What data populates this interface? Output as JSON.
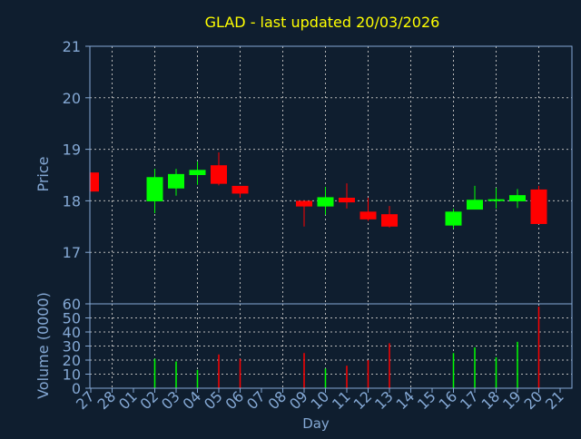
{
  "chart_data": [
    {
      "type": "candlestick",
      "title": "GLAD - last updated 20/03/2026",
      "ylabel": "Price",
      "ylim": [
        16,
        21
      ],
      "yticks": [
        "17",
        "18",
        "19",
        "20",
        "21"
      ],
      "grid": true,
      "x_categories": [
        "27",
        "28",
        "01",
        "02",
        "03",
        "04",
        "05",
        "06",
        "07",
        "08",
        "09",
        "10",
        "11",
        "12",
        "13",
        "14",
        "15",
        "16",
        "17",
        "18",
        "19",
        "20",
        "21"
      ],
      "candles": [
        {
          "x": "27",
          "open": 18.55,
          "high": 18.55,
          "low": 18.18,
          "close": 18.18
        },
        {
          "x": "02",
          "open": 17.99,
          "high": 18.62,
          "low": 17.76,
          "close": 18.46
        },
        {
          "x": "03",
          "open": 18.24,
          "high": 18.62,
          "low": 18.1,
          "close": 18.52
        },
        {
          "x": "04",
          "open": 18.5,
          "high": 18.76,
          "low": 18.31,
          "close": 18.6
        },
        {
          "x": "05",
          "open": 18.69,
          "high": 18.94,
          "low": 18.3,
          "close": 18.33
        },
        {
          "x": "06",
          "open": 18.29,
          "high": 18.29,
          "low": 18.06,
          "close": 18.14
        },
        {
          "x": "09",
          "open": 18.0,
          "high": 18.0,
          "low": 17.5,
          "close": 17.89
        },
        {
          "x": "10",
          "open": 17.89,
          "high": 18.27,
          "low": 17.73,
          "close": 18.07
        },
        {
          "x": "11",
          "open": 18.06,
          "high": 18.34,
          "low": 17.85,
          "close": 17.97
        },
        {
          "x": "12",
          "open": 17.79,
          "high": 18.06,
          "low": 17.61,
          "close": 17.64
        },
        {
          "x": "13",
          "open": 17.74,
          "high": 17.9,
          "low": 17.48,
          "close": 17.5
        },
        {
          "x": "16",
          "open": 17.52,
          "high": 17.85,
          "low": 17.46,
          "close": 17.79
        },
        {
          "x": "17",
          "open": 17.83,
          "high": 18.29,
          "low": 17.83,
          "close": 18.02
        },
        {
          "x": "18",
          "open": 18.0,
          "high": 18.25,
          "low": 17.85,
          "close": 18.03
        },
        {
          "x": "19",
          "open": 17.99,
          "high": 18.23,
          "low": 17.86,
          "close": 18.11
        },
        {
          "x": "20",
          "open": 18.22,
          "high": 18.29,
          "low": 17.55,
          "close": 17.55
        }
      ]
    },
    {
      "type": "bar",
      "ylabel": "Volume (0000)",
      "xlabel": "Day",
      "ylim": [
        0,
        60
      ],
      "yticks": [
        "0",
        "10",
        "20",
        "30",
        "40",
        "50",
        "60"
      ],
      "grid": true,
      "bars": [
        {
          "x": "02",
          "value": 21,
          "direction": "up"
        },
        {
          "x": "03",
          "value": 19,
          "direction": "up"
        },
        {
          "x": "04",
          "value": 13,
          "direction": "up"
        },
        {
          "x": "05",
          "value": 24,
          "direction": "down"
        },
        {
          "x": "06",
          "value": 21,
          "direction": "down"
        },
        {
          "x": "09",
          "value": 25,
          "direction": "down"
        },
        {
          "x": "10",
          "value": 14,
          "direction": "up"
        },
        {
          "x": "11",
          "value": 16,
          "direction": "down"
        },
        {
          "x": "12",
          "value": 20,
          "direction": "down"
        },
        {
          "x": "13",
          "value": 32,
          "direction": "down"
        },
        {
          "x": "16",
          "value": 25,
          "direction": "up"
        },
        {
          "x": "17",
          "value": 29,
          "direction": "up"
        },
        {
          "x": "18",
          "value": 22,
          "direction": "up"
        },
        {
          "x": "19",
          "value": 33,
          "direction": "up"
        },
        {
          "x": "20",
          "value": 58,
          "direction": "down"
        }
      ]
    }
  ],
  "colors": {
    "background": "#0f1e2f",
    "axis": "#84a8d4",
    "grid": "#b8b8b8",
    "title": "#ffff00",
    "up": "#00ff00",
    "down": "#ff0000"
  }
}
